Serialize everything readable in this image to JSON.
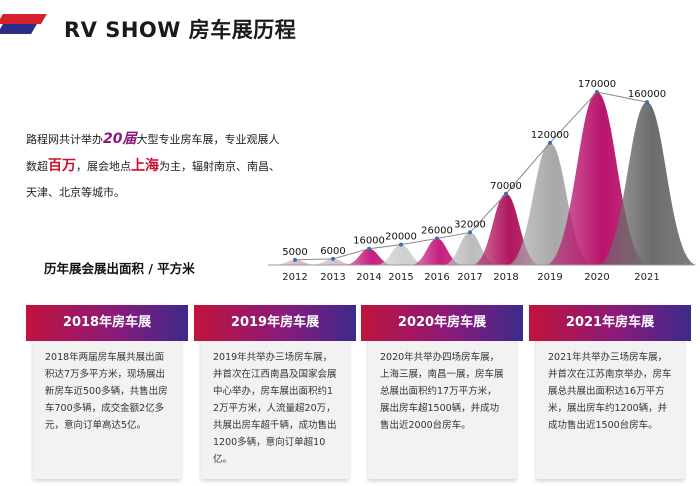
{
  "header": {
    "title": "RV SHOW 房车展历程"
  },
  "intro": {
    "line_a": "路程网共计举办",
    "count": "20届",
    "line_b": "大型专业房车展，专业观展人数超",
    "visitors": "百万",
    "line_c": "，展会地点",
    "location": "上海",
    "line_d": "为主，辐射南京、南昌、天津、北京等城市。"
  },
  "chart_label": "历年展会展出面积 / 平方米",
  "chart_data": {
    "type": "area",
    "title": "历年展会展出面积 / 平方米",
    "categories": [
      "2012",
      "2013",
      "2014",
      "2015",
      "2016",
      "2017",
      "2018",
      "2019",
      "2020",
      "2021"
    ],
    "values": [
      5000,
      6000,
      16000,
      20000,
      26000,
      32000,
      70000,
      120000,
      170000,
      160000
    ],
    "labels": [
      "5000",
      "6000",
      "16000",
      "20000",
      "26000",
      "32000",
      "70000",
      "120000",
      "170000",
      "160000"
    ],
    "ylim": [
      0,
      170000
    ],
    "colors": [
      "#d9b8cf",
      "#d6bfcf",
      "#c71f7e",
      "#cfcfcf",
      "#c71f7e",
      "#bdbdbd",
      "#b0185f",
      "#a8a8a8",
      "#b8156c",
      "#6c6c6c"
    ]
  },
  "cards": [
    {
      "title": "2018年房车展",
      "body": "2018年两届房车展共展出面积达7万多平方米，现场展出新房车近500多辆，共售出房车700多辆，成交金额2亿多元，意向订单高达5亿。"
    },
    {
      "title": "2019年房车展",
      "body": "2019年共举办三场房车展，并首次在江西南昌及国家会展中心举办，房车展出面积约12万平方米，人流量超20万，共展出房车超千辆，成功售出1200多辆，意向订单超10亿。"
    },
    {
      "title": "2020年房车展",
      "body": "2020年共举办四场房车展，上海三展，南昌一展，房车展总展出面积约17万平方米，展出房车超1500辆，并成功售出近2000台房车。"
    },
    {
      "title": "2021年房车展",
      "body": "2021年共举办三场房车展，并首次在江苏南京举办，房车展总共展出面积达16万平方米，展出房车约1200辆，并成功售出近1500台房车。"
    }
  ]
}
